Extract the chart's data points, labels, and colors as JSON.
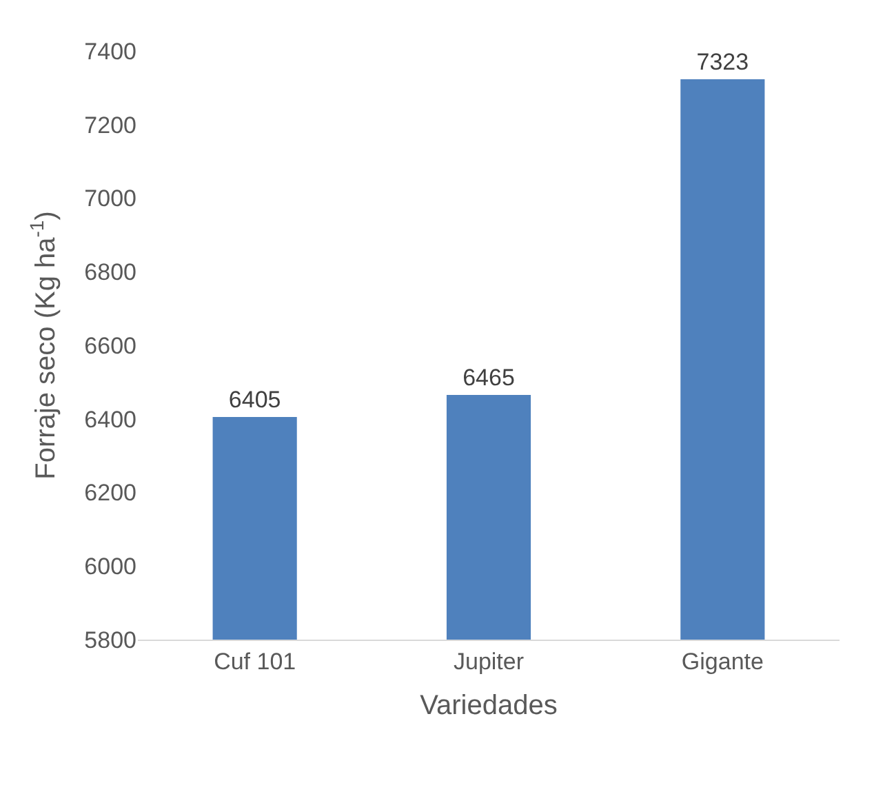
{
  "chart_data": {
    "type": "bar",
    "xlabel": "Variedades",
    "ylabel": "Forraje seco (Kg ha$^{-1}$)",
    "categories": [
      "Cuf 101",
      "Jupiter",
      "Gigante"
    ],
    "values": [
      6405,
      6465,
      7323
    ],
    "color": "#4f81bd",
    "ylim": [
      5800,
      7400
    ],
    "yticks": [
      5800,
      6000,
      6200,
      6400,
      6600,
      6800,
      7000,
      7200,
      7400
    ],
    "data_labels": true,
    "grid": false,
    "legend": false
  }
}
